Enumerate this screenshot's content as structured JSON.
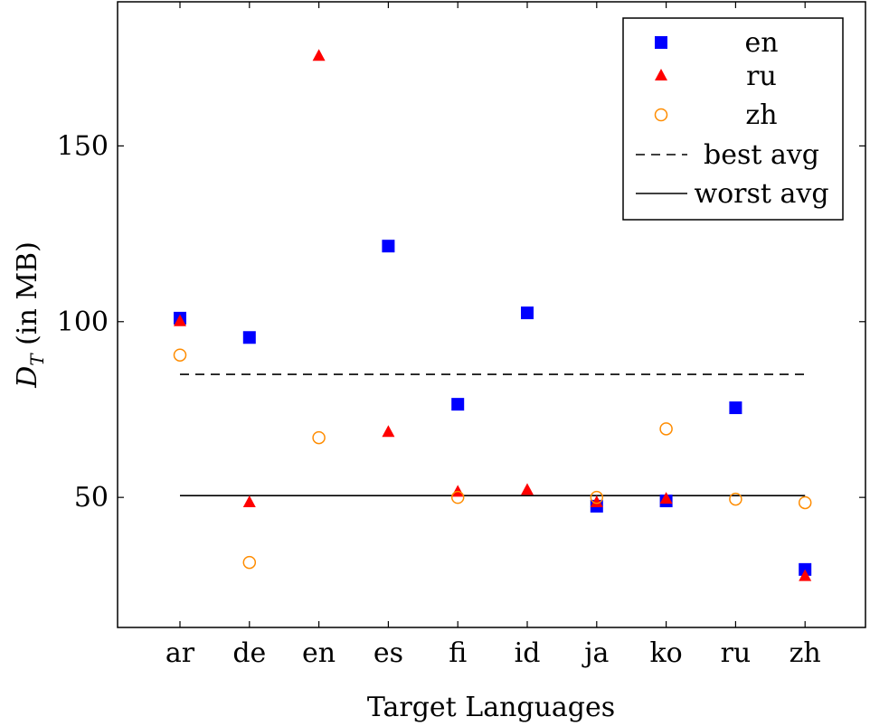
{
  "chart_data": {
    "type": "scatter",
    "xlabel": "Target Languages",
    "ylabel_main": "D",
    "ylabel_sub": "T",
    "ylabel_rest": " (in MB)",
    "categories": [
      "ar",
      "de",
      "en",
      "es",
      "fi",
      "id",
      "ja",
      "ko",
      "ru",
      "zh"
    ],
    "ylim": [
      13,
      191
    ],
    "yticks": [
      50,
      100,
      150
    ],
    "grid": false,
    "legend_position": "top-right",
    "series": [
      {
        "name": "en",
        "marker": "square",
        "color": "#0000ff",
        "values": [
          101,
          95.5,
          null,
          121.5,
          76.5,
          102.5,
          47.5,
          49,
          75.5,
          29.5
        ]
      },
      {
        "name": "ru",
        "marker": "triangle",
        "color": "#ff0000",
        "values": [
          100,
          48.5,
          175.5,
          68.5,
          51.5,
          52,
          48.5,
          49.5,
          null,
          27.5
        ]
      },
      {
        "name": "zh",
        "marker": "circle",
        "color": "#ff8c00",
        "values": [
          90.5,
          31.5,
          67,
          null,
          50,
          null,
          50,
          69.5,
          49.5,
          48.5
        ]
      }
    ],
    "reference_lines": [
      {
        "name": "best avg",
        "style": "dashed",
        "value": 85
      },
      {
        "name": "worst avg",
        "style": "solid",
        "value": 50.5
      }
    ]
  }
}
